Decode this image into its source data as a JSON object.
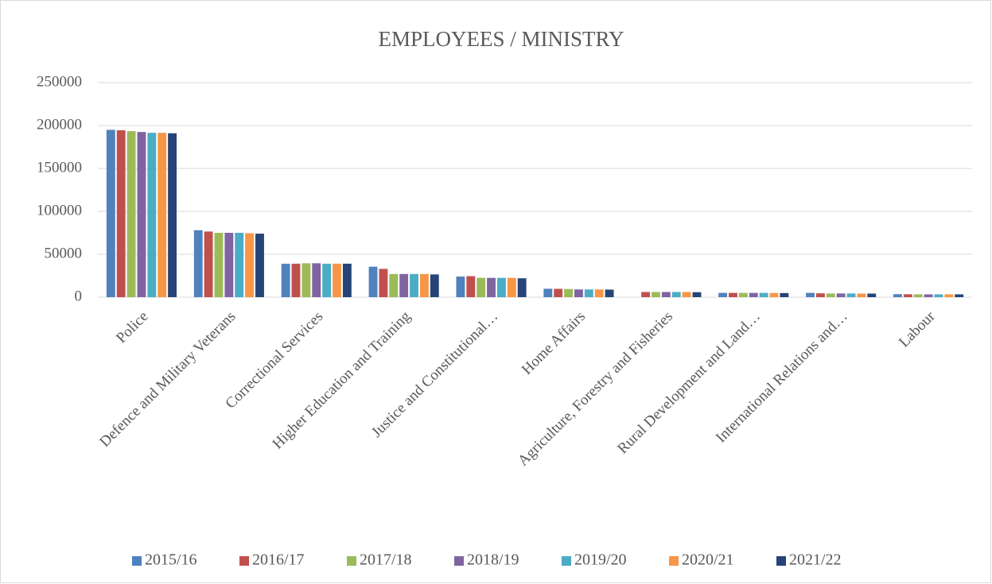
{
  "chart_data": {
    "type": "bar",
    "title": "EMPLOYEES / MINISTRY",
    "categories": [
      "Police",
      "Defence and Military Veterans",
      "Correctional Services",
      "Higher Education and Training",
      "Justice and Constitutional…",
      "Home Affairs",
      "Agriculture, Forestry and Fisheries",
      "Rural Development and Land…",
      "International Relations and…",
      "Labour"
    ],
    "series": [
      {
        "name": "2015/16",
        "color": "#4f81bd",
        "values": [
          195000,
          78000,
          39000,
          35500,
          24000,
          9800,
          null,
          5000,
          5000,
          3500
        ]
      },
      {
        "name": "2016/17",
        "color": "#c0504d",
        "values": [
          194500,
          76500,
          39000,
          33000,
          24500,
          9700,
          6000,
          5000,
          4500,
          3400
        ]
      },
      {
        "name": "2017/18",
        "color": "#9bbb59",
        "values": [
          193500,
          75000,
          39500,
          27000,
          22500,
          9500,
          6000,
          5000,
          4300,
          3300
        ]
      },
      {
        "name": "2018/19",
        "color": "#8064a2",
        "values": [
          192500,
          75000,
          39500,
          27000,
          22500,
          9000,
          6000,
          5000,
          4300,
          3300
        ]
      },
      {
        "name": "2019/20",
        "color": "#4bacc6",
        "values": [
          191500,
          75000,
          39000,
          27000,
          22500,
          9000,
          6000,
          5000,
          4300,
          3300
        ]
      },
      {
        "name": "2020/21",
        "color": "#f79646",
        "values": [
          191500,
          74500,
          39000,
          27000,
          22500,
          9000,
          6000,
          4900,
          4200,
          3300
        ]
      },
      {
        "name": "2021/22",
        "color": "#264478",
        "values": [
          191000,
          74000,
          39000,
          26500,
          22000,
          8800,
          5800,
          4800,
          4200,
          3300
        ]
      }
    ],
    "ylim": [
      0,
      250000
    ],
    "yticks": [
      0,
      50000,
      100000,
      150000,
      200000,
      250000
    ],
    "grid": true,
    "legend": "bottom"
  }
}
